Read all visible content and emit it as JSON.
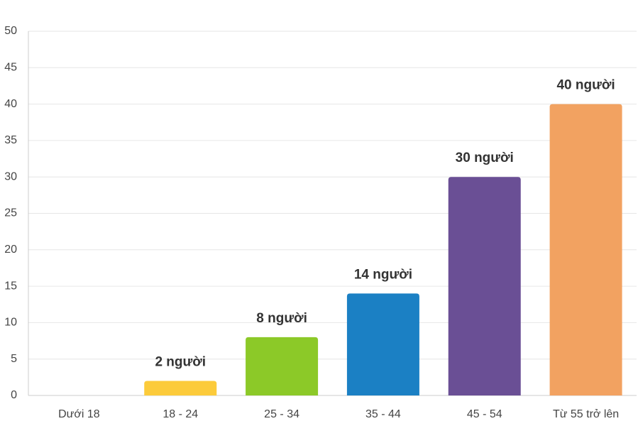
{
  "chart_data": {
    "type": "bar",
    "categories": [
      "Dưới 18",
      "18 - 24",
      "25 - 34",
      "35 - 44",
      "45 - 54",
      "Từ 55 trở lên"
    ],
    "values": [
      0,
      2,
      8,
      14,
      30,
      40
    ],
    "value_labels": [
      null,
      "2 người",
      "8 người",
      "14 người",
      "30 người",
      "40 người"
    ],
    "colors": [
      null,
      "#fccb3b",
      "#8cc928",
      "#1b80c4",
      "#6a4f95",
      "#f2a261"
    ],
    "ylim": [
      0,
      50
    ],
    "yticks": [
      0,
      5,
      10,
      15,
      20,
      25,
      30,
      35,
      40,
      45,
      50
    ],
    "grid": true
  }
}
